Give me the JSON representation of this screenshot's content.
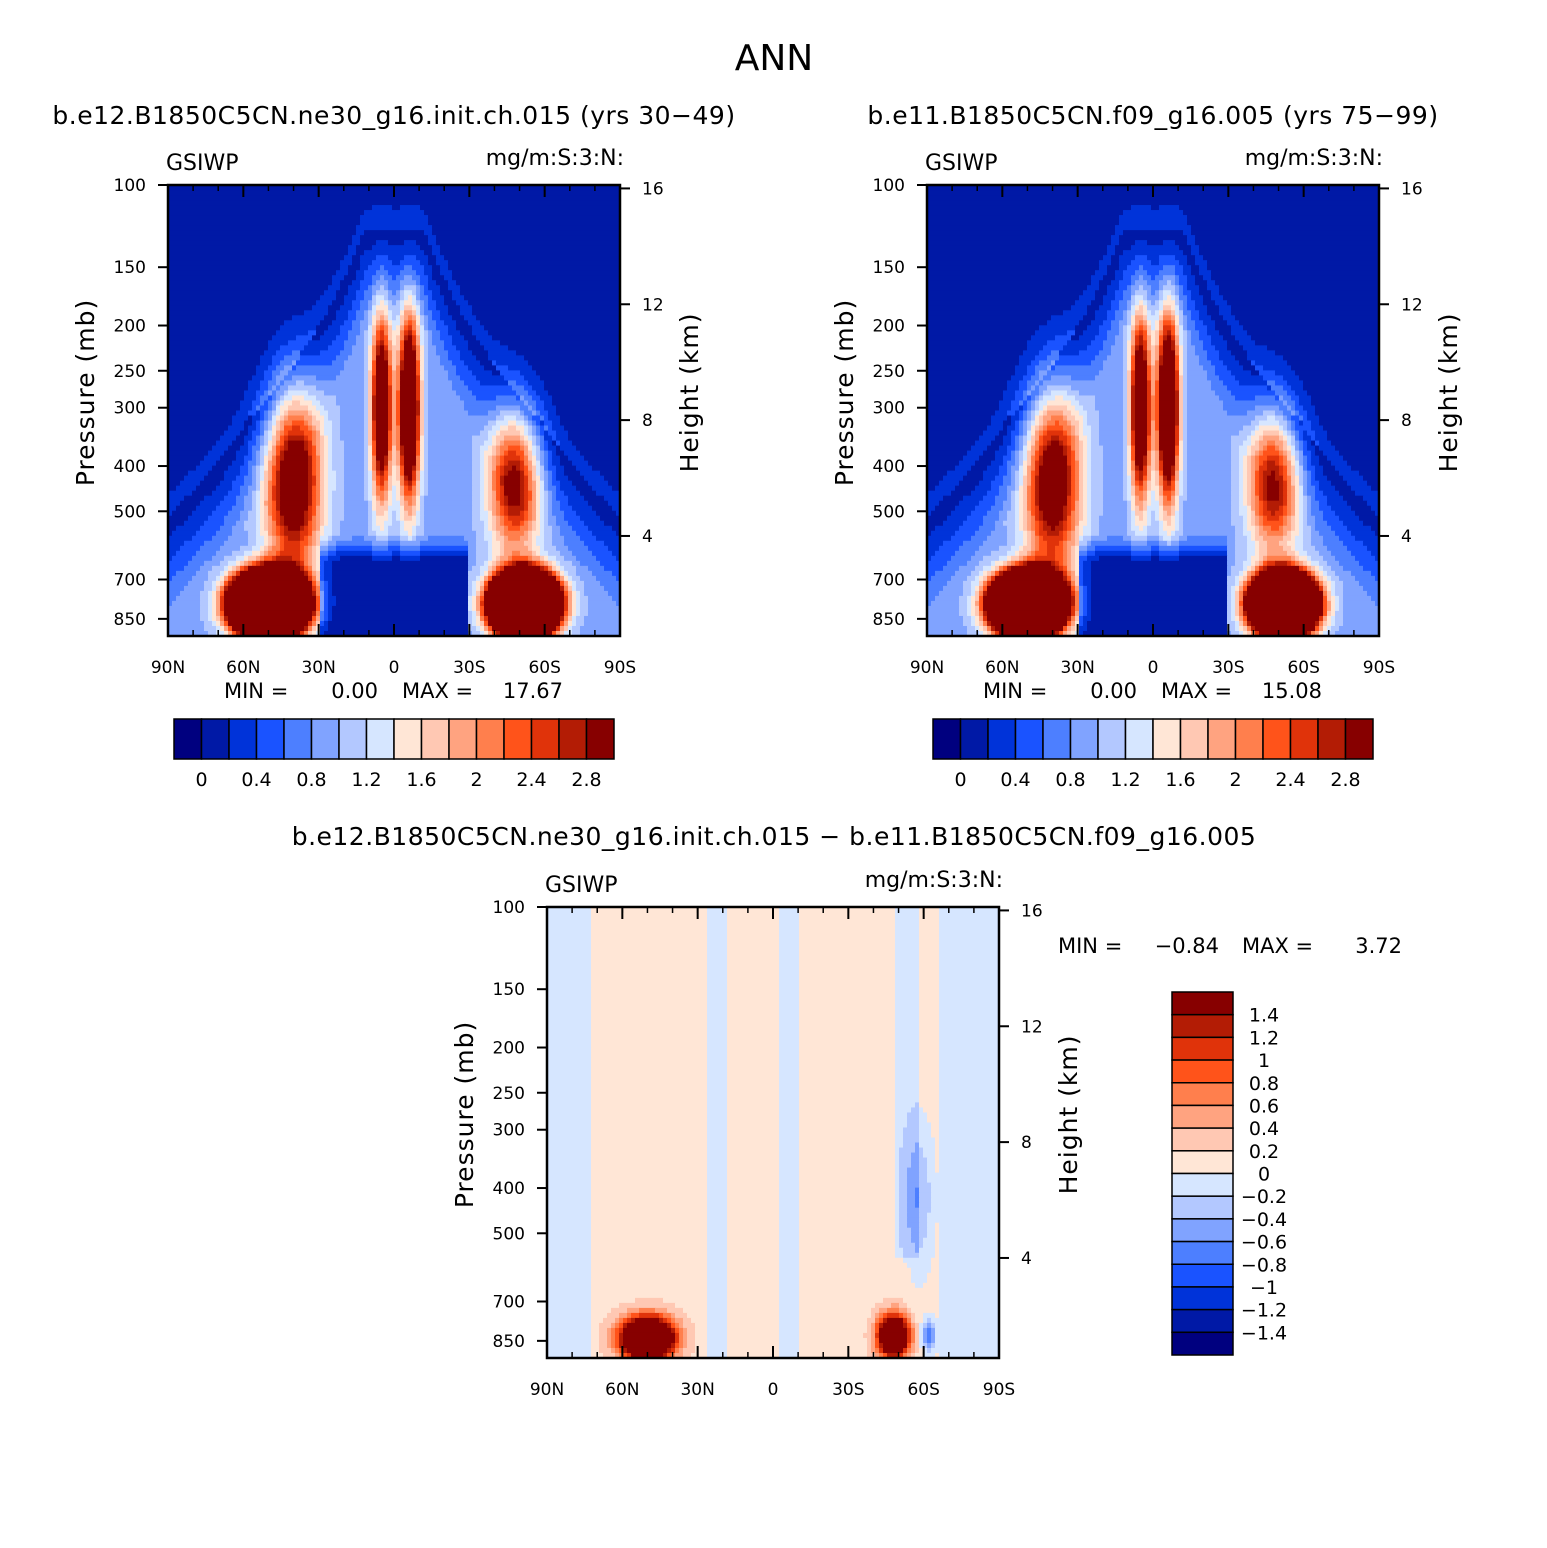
{
  "figure": {
    "title": "ANN",
    "diff_title": "b.e12.B1850C5CN.ne30_g16.init.ch.015 − b.e11.B1850C5CN.f09_g16.005"
  },
  "panels": [
    {
      "id": "case1",
      "title": "b.e12.B1850C5CN.ne30_g16.init.ch.015 (yrs 30−49)",
      "left_label": "GSIWP",
      "right_label": "mg/m:S:3:N:",
      "min_label": "MIN =",
      "min_value": "0.00",
      "max_label": "MAX =",
      "max_value": "17.67"
    },
    {
      "id": "case2",
      "title": "b.e11.B1850C5CN.f09_g16.005 (yrs 75−99)",
      "left_label": "GSIWP",
      "right_label": "mg/m:S:3:N:",
      "min_label": "MIN =",
      "min_value": "0.00",
      "max_label": "MAX =",
      "max_value": "15.08"
    },
    {
      "id": "diff",
      "title": "",
      "left_label": "GSIWP",
      "right_label": "mg/m:S:3:N:",
      "min_label": "MIN =",
      "min_value": "−0.84",
      "max_label": "MAX =",
      "max_value": "3.72"
    }
  ],
  "chart_data": [
    {
      "type": "heatmap",
      "title": "b.e12.B1850C5CN.ne30_g16.init.ch.015 (yrs 30−49)",
      "variable": "GSIWP",
      "units": "mg/m:S:3:N:",
      "x_tick_labels": [
        "90N",
        "60N",
        "30N",
        "0",
        "30S",
        "60S",
        "90S"
      ],
      "x_ticks": [
        90,
        60,
        30,
        0,
        -30,
        -60,
        -90
      ],
      "xlim": [
        90,
        -90
      ],
      "ylabel": "Pressure (mb)",
      "y_ticks": [
        100,
        150,
        200,
        250,
        300,
        400,
        500,
        700,
        850
      ],
      "ylim": [
        100,
        925
      ],
      "y_scale": "log",
      "y2label": "Height (km)",
      "y2_ticks": [
        16,
        12,
        8,
        4
      ],
      "colorbar_levels": [
        0,
        0.2,
        0.4,
        0.6,
        0.8,
        1.0,
        1.2,
        1.4,
        1.6,
        1.8,
        2.0,
        2.2,
        2.4,
        2.6,
        2.8
      ],
      "colorbar_tick_labels": [
        "0",
        "0.4",
        "0.8",
        "1.2",
        "1.6",
        "2",
        "2.4",
        "2.8"
      ],
      "colormap": [
        "#00007f",
        "#0019a6",
        "#0033d9",
        "#1a53ff",
        "#4d7fff",
        "#80a3ff",
        "#b3c8ff",
        "#d6e6ff",
        "#ffe6d6",
        "#ffc8b3",
        "#ffa380",
        "#ff7f4d",
        "#ff531a",
        "#e0330a",
        "#b31c05",
        "#870000"
      ],
      "min": 0.0,
      "max": 17.67,
      "features": [
        {
          "lat": 50,
          "p": 790,
          "peak": 17.67
        },
        {
          "lat": -52,
          "p": 790,
          "peak": 16
        },
        {
          "lat": -6,
          "p": 300,
          "peak": 3.5
        },
        {
          "lat": 5,
          "p": 300,
          "peak": 3.0
        },
        {
          "lat": 40,
          "p": 430,
          "peak": 2.6
        },
        {
          "lat": -48,
          "p": 430,
          "peak": 2.2
        }
      ]
    },
    {
      "type": "heatmap",
      "title": "b.e11.B1850C5CN.f09_g16.005 (yrs 75−99)",
      "variable": "GSIWP",
      "units": "mg/m:S:3:N:",
      "x_tick_labels": [
        "90N",
        "60N",
        "30N",
        "0",
        "30S",
        "60S",
        "90S"
      ],
      "x_ticks": [
        90,
        60,
        30,
        0,
        -30,
        -60,
        -90
      ],
      "xlim": [
        90,
        -90
      ],
      "ylabel": "Pressure (mb)",
      "y_ticks": [
        100,
        150,
        200,
        250,
        300,
        400,
        500,
        700,
        850
      ],
      "ylim": [
        100,
        925
      ],
      "y_scale": "log",
      "y2label": "Height (km)",
      "y2_ticks": [
        16,
        12,
        8,
        4
      ],
      "colorbar_levels": [
        0,
        0.2,
        0.4,
        0.6,
        0.8,
        1.0,
        1.2,
        1.4,
        1.6,
        1.8,
        2.0,
        2.2,
        2.4,
        2.6,
        2.8
      ],
      "colorbar_tick_labels": [
        "0",
        "0.4",
        "0.8",
        "1.2",
        "1.6",
        "2",
        "2.4",
        "2.8"
      ],
      "colormap": [
        "#00007f",
        "#0019a6",
        "#0033d9",
        "#1a53ff",
        "#4d7fff",
        "#80a3ff",
        "#b3c8ff",
        "#d6e6ff",
        "#ffe6d6",
        "#ffc8b3",
        "#ffa380",
        "#ff7f4d",
        "#ff531a",
        "#e0330a",
        "#b31c05",
        "#870000"
      ],
      "min": 0.0,
      "max": 15.08,
      "features": [
        {
          "lat": 50,
          "p": 790,
          "peak": 15.08
        },
        {
          "lat": -52,
          "p": 790,
          "peak": 14
        },
        {
          "lat": -6,
          "p": 300,
          "peak": 3.6
        },
        {
          "lat": 5,
          "p": 300,
          "peak": 3.1
        },
        {
          "lat": 40,
          "p": 430,
          "peak": 2.5
        },
        {
          "lat": -48,
          "p": 430,
          "peak": 2.1
        }
      ]
    },
    {
      "type": "heatmap",
      "title": "b.e12.B1850C5CN.ne30_g16.init.ch.015 − b.e11.B1850C5CN.f09_g16.005",
      "variable": "GSIWP",
      "units": "mg/m:S:3:N:",
      "x_tick_labels": [
        "90N",
        "60N",
        "30N",
        "0",
        "30S",
        "60S",
        "90S"
      ],
      "x_ticks": [
        90,
        60,
        30,
        0,
        -30,
        -60,
        -90
      ],
      "xlim": [
        90,
        -90
      ],
      "ylabel": "Pressure (mb)",
      "y_ticks": [
        100,
        150,
        200,
        250,
        300,
        400,
        500,
        700,
        850
      ],
      "ylim": [
        100,
        925
      ],
      "y_scale": "log",
      "y2label": "Height (km)",
      "y2_ticks": [
        16,
        12,
        8,
        4
      ],
      "colorbar_levels": [
        -1.4,
        -1.2,
        -1.0,
        -0.8,
        -0.6,
        -0.4,
        -0.2,
        0,
        0.2,
        0.4,
        0.6,
        0.8,
        1.0,
        1.2,
        1.4
      ],
      "colorbar_tick_labels": [
        "1.4",
        "1.2",
        "1",
        "0.8",
        "0.6",
        "0.4",
        "0.2",
        "0",
        "−0.2",
        "−0.4",
        "−0.6",
        "−0.8",
        "−1",
        "−1.2",
        "−1.4"
      ],
      "colormap": [
        "#00007f",
        "#0019a6",
        "#0033d9",
        "#1a53ff",
        "#4d7fff",
        "#80a3ff",
        "#b3c8ff",
        "#d6e6ff",
        "#ffe6d6",
        "#ffc8b3",
        "#ffa380",
        "#ff7f4d",
        "#ff531a",
        "#e0330a",
        "#b31c05",
        "#870000"
      ],
      "min": -0.84,
      "max": 3.72,
      "features": [
        {
          "lat": 50,
          "p": 840,
          "peak": 3.72
        },
        {
          "lat": -48,
          "p": 830,
          "peak": 3.0
        },
        {
          "lat": -62,
          "p": 830,
          "peak": -0.84
        },
        {
          "lat": -58,
          "p": 420,
          "peak": -0.5
        }
      ]
    }
  ]
}
